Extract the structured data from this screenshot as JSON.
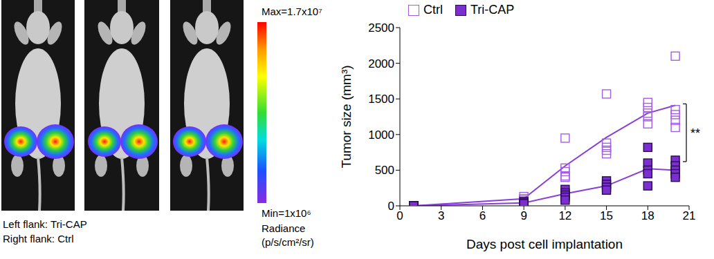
{
  "chart_data": {
    "type": "scatter",
    "x_label": "Days post cell implantation",
    "y_label": "Tumor size (mm³)",
    "xlim": [
      0,
      21
    ],
    "xticks": [
      0,
      3,
      6,
      9,
      12,
      15,
      18,
      21
    ],
    "ylim": [
      0,
      2500
    ],
    "yticks": [
      0,
      500,
      1000,
      1500,
      2000,
      2500
    ],
    "legend": "top",
    "series": [
      {
        "name": "Ctrl",
        "color": "#a35ee6",
        "marker": "square_open",
        "x": [
          1,
          1,
          1,
          1,
          1,
          9,
          9,
          9,
          12,
          12,
          12,
          12,
          12,
          15,
          15,
          15,
          15,
          15,
          18,
          18,
          18,
          18,
          18,
          20,
          20,
          20,
          20,
          20
        ],
        "values": [
          0,
          0,
          0,
          0,
          0,
          130,
          100,
          80,
          950,
          530,
          480,
          420,
          400,
          1570,
          880,
          820,
          780,
          730,
          1450,
          1380,
          1300,
          1250,
          1150,
          2100,
          1350,
          1280,
          1200,
          1100
        ],
        "mean": {
          "x": [
            1,
            9,
            12,
            15,
            18,
            20
          ],
          "values": [
            0,
            100,
            560,
            960,
            1300,
            1410
          ]
        }
      },
      {
        "name": "Tri-CAP",
        "color": "#7b2fd0",
        "marker": "square",
        "x": [
          1,
          1,
          1,
          1,
          1,
          9,
          9,
          9,
          12,
          12,
          12,
          12,
          12,
          15,
          15,
          15,
          15,
          18,
          18,
          18,
          18,
          18,
          20,
          20,
          20,
          20,
          20
        ],
        "values": [
          0,
          0,
          0,
          0,
          0,
          60,
          40,
          30,
          230,
          180,
          150,
          120,
          80,
          350,
          300,
          260,
          220,
          820,
          600,
          500,
          450,
          280,
          640,
          560,
          500,
          450,
          400
        ],
        "mean": {
          "x": [
            1,
            9,
            12,
            15,
            18,
            20
          ],
          "values": [
            0,
            40,
            170,
            280,
            520,
            500
          ]
        }
      }
    ],
    "line_color": "#8a3ed8",
    "annotations": [
      {
        "text": "**",
        "between": [
          "Ctrl",
          "Tri-CAP"
        ],
        "x": 20
      }
    ]
  },
  "image_panel": {
    "caption": [
      "Left flank: Tri-CAP",
      "Right flank: Ctrl"
    ],
    "colorbar": {
      "max_label": "Max=1.7x10⁷",
      "min_label": "Min=1x10⁶",
      "title": [
        "Radiance",
        "(p/s/cm²/sr)"
      ]
    }
  }
}
